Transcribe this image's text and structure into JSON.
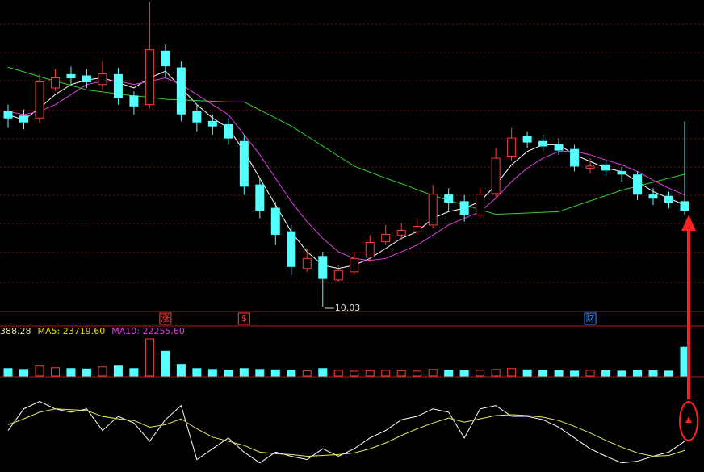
{
  "chart_data": {
    "type": "candlestick",
    "up_color": "#ff3c3c",
    "down_color": "#54ffff",
    "open": [
      12.95,
      12.88,
      12.85,
      13.3,
      13.5,
      13.48,
      13.35,
      13.5,
      13.18,
      13.05,
      13.85,
      13.6,
      12.95,
      12.8,
      12.75,
      12.5,
      11.85,
      11.5,
      11.15,
      10.6,
      10.78,
      10.43,
      10.55,
      10.77,
      11.0,
      11.1,
      11.15,
      11.25,
      11.7,
      11.6,
      11.4,
      11.72,
      12.28,
      12.58,
      12.5,
      12.45,
      12.38,
      12.1,
      12.15,
      12.05,
      12.0,
      11.7,
      11.68,
      11.6
    ],
    "high": [
      13.05,
      12.98,
      13.5,
      13.58,
      13.62,
      13.58,
      13.7,
      13.6,
      13.25,
      14.59,
      13.95,
      13.7,
      13.05,
      12.9,
      12.85,
      12.6,
      11.95,
      11.6,
      11.25,
      10.9,
      10.85,
      10.65,
      10.85,
      11.1,
      11.25,
      11.28,
      11.35,
      11.85,
      11.8,
      11.7,
      11.8,
      12.4,
      12.7,
      12.65,
      12.6,
      12.55,
      12.45,
      12.25,
      12.22,
      12.12,
      12.05,
      11.8,
      11.75,
      12.8
    ],
    "low": [
      12.7,
      12.68,
      12.78,
      13.25,
      13.35,
      13.3,
      13.28,
      13.05,
      12.9,
      13.0,
      13.45,
      12.8,
      12.65,
      12.6,
      12.45,
      11.7,
      11.35,
      10.95,
      10.5,
      10.55,
      10.03,
      10.4,
      10.5,
      10.7,
      10.95,
      11.02,
      11.1,
      11.2,
      11.45,
      11.3,
      11.35,
      11.65,
      12.2,
      12.4,
      12.35,
      12.3,
      12.05,
      12.02,
      11.98,
      11.9,
      11.62,
      11.55,
      11.5,
      11.4
    ],
    "close": [
      12.85,
      12.79,
      13.39,
      13.45,
      13.45,
      13.39,
      13.51,
      13.15,
      13.03,
      13.87,
      13.63,
      12.91,
      12.79,
      12.73,
      12.55,
      11.83,
      11.47,
      11.11,
      10.63,
      10.75,
      10.45,
      10.57,
      10.75,
      10.99,
      11.11,
      11.17,
      11.23,
      11.71,
      11.59,
      11.41,
      11.71,
      12.25,
      12.55,
      12.49,
      12.43,
      12.37,
      12.13,
      12.13,
      12.07,
      12.01,
      11.71,
      11.65,
      11.59,
      11.47
    ],
    "ma_lines": [
      {
        "color": "#ffffff",
        "values": [
          12.9,
          12.82,
          13.0,
          13.2,
          13.35,
          13.42,
          13.45,
          13.38,
          13.3,
          13.45,
          13.55,
          13.3,
          13.05,
          12.85,
          12.7,
          12.35,
          11.95,
          11.55,
          11.15,
          10.85,
          10.65,
          10.6,
          10.65,
          10.75,
          10.9,
          11.05,
          11.15,
          11.35,
          11.45,
          11.5,
          11.6,
          11.85,
          12.15,
          12.35,
          12.45,
          12.45,
          12.3,
          12.2,
          12.1,
          12.05,
          11.9,
          11.75,
          11.65,
          11.55
        ]
      },
      {
        "color": "#e040e0",
        "values": [
          12.95,
          12.9,
          12.95,
          13.05,
          13.2,
          13.35,
          13.4,
          13.4,
          13.35,
          13.4,
          13.45,
          13.35,
          13.2,
          13.05,
          12.9,
          12.6,
          12.3,
          11.95,
          11.6,
          11.3,
          11.05,
          10.85,
          10.75,
          10.72,
          10.75,
          10.85,
          10.95,
          11.1,
          11.25,
          11.35,
          11.45,
          11.65,
          11.9,
          12.1,
          12.25,
          12.35,
          12.35,
          12.3,
          12.22,
          12.15,
          12.05,
          11.92,
          11.8,
          11.7
        ]
      },
      {
        "color": "#30d030",
        "values": [
          13.61,
          13.54,
          13.47,
          13.4,
          13.34,
          13.27,
          13.24,
          13.21,
          13.18,
          13.16,
          13.13,
          13.12,
          13.11,
          13.1,
          13.09,
          13.09,
          12.97,
          12.85,
          12.73,
          12.58,
          12.43,
          12.28,
          12.13,
          12.04,
          11.95,
          11.87,
          11.78,
          11.69,
          11.62,
          11.55,
          11.48,
          11.41,
          11.42,
          11.43,
          11.44,
          11.45,
          11.53,
          11.61,
          11.69,
          11.77,
          11.83,
          11.89,
          11.95,
          12.01
        ]
      }
    ],
    "low_annotation": 10.03,
    "markers": [
      {
        "label": "涨",
        "color": "#ff4040",
        "index": 10
      },
      {
        "label": "$",
        "color": "#ff4040",
        "index": 15
      },
      {
        "label": "财",
        "color": "#4090ff",
        "index": 37
      }
    ],
    "volume_header": [
      "388.28",
      "MA5: 23719.60",
      "MA10: 22255.60"
    ],
    "volume_header_colors": [
      "#e0e0a0",
      "#e0e000",
      "#e040e0"
    ],
    "volume": [
      9000,
      8000,
      12000,
      10000,
      9000,
      8500,
      11000,
      12000,
      9000,
      45000,
      30000,
      14000,
      9000,
      8000,
      7000,
      9000,
      8000,
      7500,
      7000,
      6500,
      9000,
      7000,
      6000,
      6500,
      7000,
      6500,
      6000,
      8000,
      7000,
      6500,
      7000,
      8000,
      9000,
      7500,
      7000,
      6500,
      6000,
      7000,
      6500,
      6000,
      7000,
      6500,
      6000,
      35000
    ],
    "indicator": [
      {
        "color": "#ffffff",
        "values": [
          48,
          74,
          83,
          74,
          70,
          74,
          48,
          65,
          57,
          35,
          61,
          78,
          13,
          26,
          39,
          22,
          9,
          22,
          17,
          13,
          26,
          17,
          26,
          39,
          48,
          61,
          65,
          74,
          70,
          39,
          74,
          78,
          65,
          65,
          61,
          52,
          39,
          26,
          17,
          9,
          11,
          17,
          22,
          35
        ]
      },
      {
        "color": "#e8e860",
        "values": [
          55,
          62,
          70,
          74,
          73,
          72,
          65,
          62,
          60,
          52,
          55,
          62,
          50,
          40,
          35,
          30,
          22,
          20,
          19,
          17,
          18,
          19,
          21,
          26,
          33,
          42,
          50,
          57,
          63,
          58,
          62,
          66,
          67,
          66,
          64,
          60,
          53,
          45,
          36,
          28,
          21,
          17,
          18,
          24
        ]
      }
    ]
  }
}
